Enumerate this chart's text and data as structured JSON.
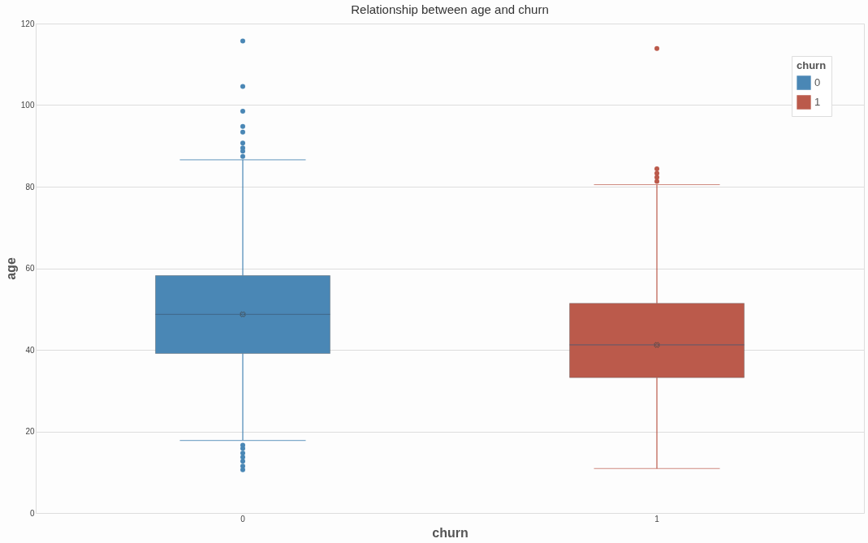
{
  "chart_data": {
    "type": "box",
    "title": "Relationship between age and churn",
    "xlabel": "churn",
    "ylabel": "age",
    "legend_title": "churn",
    "categories": [
      "0",
      "1"
    ],
    "series": [
      {
        "name": "0",
        "color": "#4a87b5",
        "boxes": [
          {
            "low": 17.8,
            "q1": 39.1,
            "median": 48.7,
            "q3": 58.2,
            "high": 86.6,
            "mean": 48.7,
            "outliers": [
              115.7,
              104.6,
              98.5,
              94.8,
              93.4,
              90.7,
              89.5,
              88.7,
              87.4,
              16.6,
              15.8,
              14.7,
              13.7,
              12.7,
              11.5,
              10.6
            ]
          },
          null
        ]
      },
      {
        "name": "1",
        "color": "#bb5a4b",
        "boxes": [
          null,
          {
            "low": 10.9,
            "q1": 33.2,
            "median": 41.2,
            "q3": 51.4,
            "high": 80.5,
            "mean": 41.2,
            "outliers": [
              113.9,
              84.4,
              83.3,
              82.3,
              81.3
            ]
          }
        ]
      }
    ],
    "ylim": [
      0,
      120
    ],
    "yticks": [
      0,
      20,
      40,
      60,
      80,
      100,
      120
    ],
    "grid": "y",
    "legend": "top right"
  }
}
